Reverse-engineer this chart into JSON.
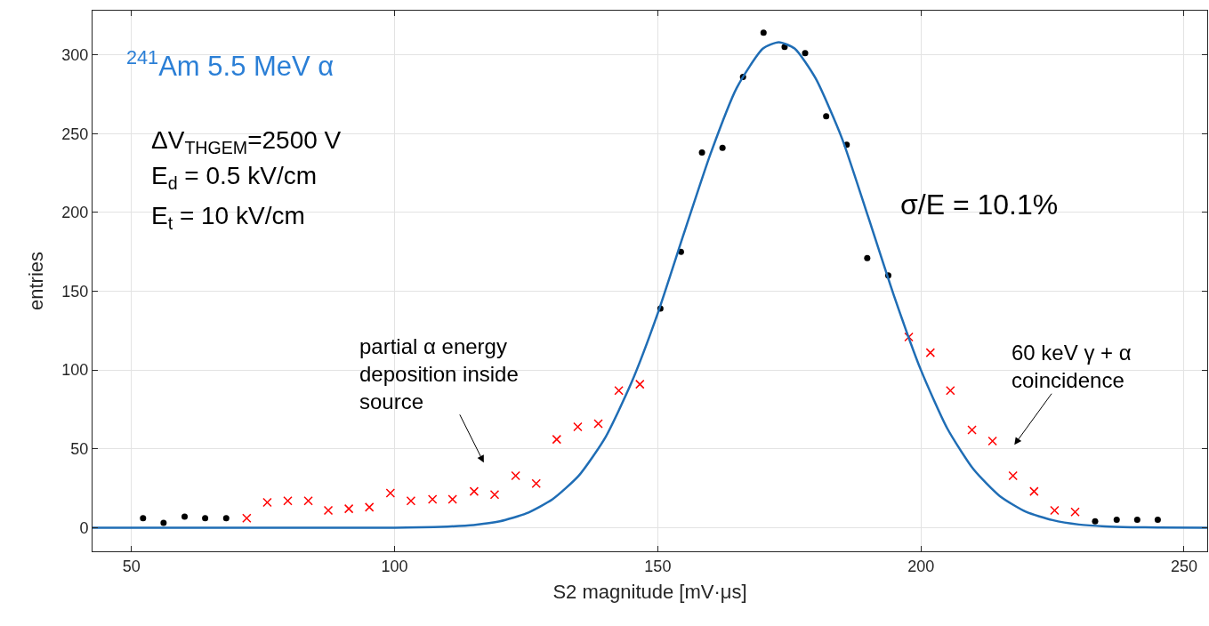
{
  "chart_data": {
    "type": "scatter",
    "xlabel": "S2 magnitude [mV·μs]",
    "ylabel": "entries",
    "xlim": [
      42.6,
      254.4
    ],
    "ylim": [
      -15,
      328
    ],
    "xticks": [
      50,
      100,
      150,
      200,
      250
    ],
    "yticks": [
      0,
      50,
      100,
      150,
      200,
      250,
      300
    ],
    "grid": true,
    "series": [
      {
        "marker": "circle",
        "color": "#000000",
        "x": [
          52.2,
          56.1,
          60.1,
          64.0,
          68.0,
          150.5,
          154.4,
          158.4,
          162.3,
          166.2,
          170.1,
          174.1,
          178.0,
          182.0,
          185.9,
          189.8,
          193.8,
          233.1,
          237.2,
          241.1,
          245.0
        ],
        "values": [
          6,
          3,
          7,
          6,
          6,
          139,
          175,
          238,
          241,
          286,
          314,
          305,
          301,
          261,
          243,
          171,
          160,
          4,
          5,
          5,
          5
        ]
      },
      {
        "type": "scatter",
        "marker": "cross",
        "color": "#ff0000",
        "x": [
          71.9,
          75.8,
          79.7,
          83.6,
          87.4,
          91.3,
          95.2,
          99.2,
          103.1,
          107.2,
          111.0,
          115.1,
          119.0,
          123.0,
          126.9,
          130.8,
          134.8,
          138.7,
          142.6,
          146.6,
          197.7,
          201.8,
          205.6,
          209.7,
          213.6,
          217.5,
          221.5,
          225.4,
          229.3
        ],
        "values": [
          6,
          16,
          17,
          17,
          11,
          12,
          13,
          22,
          17,
          18,
          18,
          23,
          21,
          33,
          28,
          56,
          64,
          66,
          87,
          91,
          121,
          111,
          87,
          62,
          55,
          33,
          23,
          11,
          10
        ]
      },
      {
        "type": "line",
        "marker": "none",
        "line_style": "solid",
        "color": "#1f6db5",
        "x": [
          42.6,
          60,
          80,
          100,
          105,
          110,
          115,
          120,
          125,
          130,
          135,
          140,
          145,
          150,
          155,
          160,
          165,
          170,
          173,
          176,
          180,
          185,
          190,
          195,
          200,
          205,
          210,
          215,
          220,
          225,
          230,
          235,
          240,
          245,
          254.4
        ],
        "values": [
          0,
          0,
          0,
          0,
          0.2,
          0.7,
          1.7,
          4,
          9,
          18,
          33,
          57,
          92,
          136,
          187,
          237,
          279,
          304,
          308,
          304,
          285,
          247,
          197,
          146,
          100,
          63,
          37,
          20,
          10,
          4.8,
          2,
          0.8,
          0.3,
          0.1,
          0
        ]
      }
    ],
    "annotations": [
      "$^{241}$Am 5.5 MeV α",
      "ΔV$_{THGEM}$=2500 V",
      "E$_{d}$ = 0.5 kV/cm",
      "E$_{t}$ = 10 kV/cm",
      "σ/E = 10.1%",
      "partial α energy\ndeposition inside\nsource",
      "60 keV γ + α\ncoincidence"
    ]
  }
}
